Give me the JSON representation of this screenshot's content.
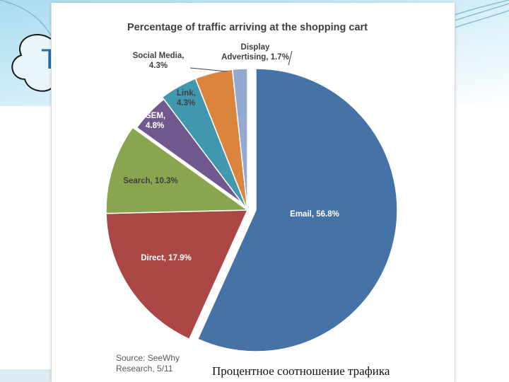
{
  "slide": {
    "title_fragment": "T",
    "caption": "Процентное соотношение трафика"
  },
  "chart_data": {
    "type": "pie",
    "title": "Percentage of traffic arriving at the shopping cart",
    "source": [
      "Source: SeeWhy",
      "Research, 5/11"
    ],
    "slices": [
      {
        "label": [
          "Email, 56.8%"
        ],
        "value": 56.8,
        "color": "#4572a7"
      },
      {
        "label": [
          "Direct, 17.9%"
        ],
        "value": 17.9,
        "color": "#aa4643"
      },
      {
        "label": [
          "Search, 10.3%"
        ],
        "value": 10.3,
        "color": "#89a54e"
      },
      {
        "label": [
          "SEM,",
          "4.8%"
        ],
        "value": 4.8,
        "color": "#71588f"
      },
      {
        "label": [
          "Link,",
          "4.3%"
        ],
        "value": 4.3,
        "color": "#4198af"
      },
      {
        "label": [
          "Social Media,",
          "4.3%"
        ],
        "value": 4.3,
        "color": "#db843d"
      },
      {
        "label": [
          "Display",
          "Advertising, 1.7%"
        ],
        "value": 1.7,
        "color": "#93a9cf"
      }
    ]
  }
}
